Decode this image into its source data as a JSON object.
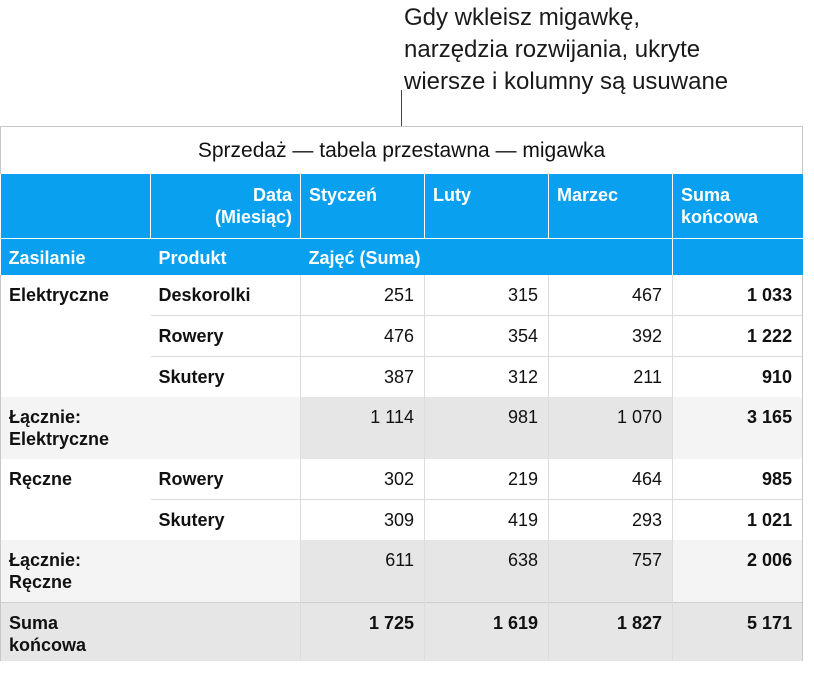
{
  "callout": {
    "line1": "Gdy wkleisz migawkę,",
    "line2": "narzędzia rozwijania, ukryte",
    "line3": "wiersze i kolumny są usuwane"
  },
  "table": {
    "title": "Sprzedaż — tabela przestawna — migawka",
    "header1": {
      "data_label_1": "Data",
      "data_label_2": "(Miesiąc)",
      "col_jan": "Styczeń",
      "col_feb": "Luty",
      "col_mar": "Marzec",
      "col_total_1": "Suma",
      "col_total_2": "końcowa"
    },
    "header2": {
      "zasilanie": "Zasilanie",
      "produkt": "Produkt",
      "measure": "Zajęć (Suma)"
    },
    "groups": [
      {
        "name": "Elektryczne",
        "rows": [
          {
            "product": "Deskorolki",
            "values": [
              "251",
              "315",
              "467"
            ],
            "total": "1 033"
          },
          {
            "product": "Rowery",
            "values": [
              "476",
              "354",
              "392"
            ],
            "total": "1 222"
          },
          {
            "product": "Skutery",
            "values": [
              "387",
              "312",
              "211"
            ],
            "total": "910"
          }
        ],
        "subtotal_label_1": "Łącznie:",
        "subtotal_label_2": "Elektryczne",
        "subtotal_values": [
          "1 114",
          "981",
          "1 070"
        ],
        "subtotal_total": "3 165"
      },
      {
        "name": "Ręczne",
        "rows": [
          {
            "product": "Rowery",
            "values": [
              "302",
              "219",
              "464"
            ],
            "total": "985"
          },
          {
            "product": "Skutery",
            "values": [
              "309",
              "419",
              "293"
            ],
            "total": "1 021"
          }
        ],
        "subtotal_label_1": "Łącznie:",
        "subtotal_label_2": "Ręczne",
        "subtotal_values": [
          "611",
          "638",
          "757"
        ],
        "subtotal_total": "2 006"
      }
    ],
    "grand_total": {
      "label_1": "Suma",
      "label_2": "końcowa",
      "values": [
        "1 725",
        "1 619",
        "1 827"
      ],
      "total": "5 171"
    }
  },
  "colors": {
    "header_bg": "#0aa0f0",
    "subtotal_bg": "#e6e6e6"
  }
}
